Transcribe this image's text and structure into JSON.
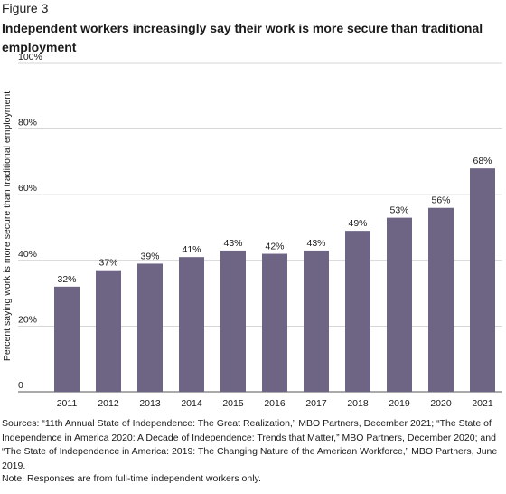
{
  "figure_label": "Figure 3",
  "colors": {
    "bar": "#6e6585",
    "grid": "#c8c8c8",
    "text": "#1a1a1a"
  },
  "chart_data": {
    "type": "bar",
    "title": "Independent workers increasingly say their work is more secure than traditional employment",
    "xlabel": "",
    "ylabel": "Percent saying work is more secure than traditional employment",
    "ylim": [
      0,
      100
    ],
    "yticks": [
      0,
      20,
      40,
      60,
      80,
      100
    ],
    "ytick_labels": [
      "0",
      "20%",
      "40%",
      "60%",
      "80%",
      "100%"
    ],
    "grid": true,
    "categories": [
      "2011",
      "2012",
      "2013",
      "2014",
      "2015",
      "2016",
      "2017",
      "2018",
      "2019",
      "2020",
      "2021"
    ],
    "values": [
      32,
      37,
      39,
      41,
      43,
      42,
      43,
      49,
      53,
      56,
      68
    ],
    "data_labels": [
      "32%",
      "37%",
      "39%",
      "41%",
      "43%",
      "42%",
      "43%",
      "49%",
      "53%",
      "56%",
      "68%"
    ]
  },
  "sources_text": "Sources: “11th Annual State of Independence: The Great Realization,” MBO Partners, December 2021; “The State of Independence in America 2020: A Decade of Independence: Trends that Matter,” MBO Partners, December 2020; and “The State of Independence in America: 2019: The Changing Nature of the American Workforce,” MBO Partners, June 2019.",
  "note_text": "Note: Responses are from full-time independent workers only."
}
